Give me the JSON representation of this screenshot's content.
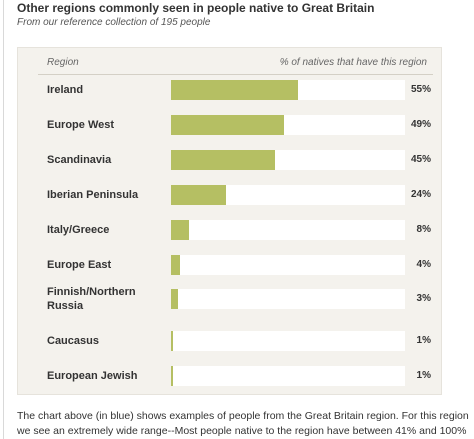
{
  "title": "Other regions commonly seen in people native to Great Britain",
  "subtitle": "From our reference collection of 195 people",
  "footnote": "The chart above (in blue) shows examples of people from the Great Britain region. For this region we see an extremely wide range--Most people native to the region have between 41% and 100% of their",
  "colors": {
    "bar": "#b5bf63",
    "panel": "#f4f2ed",
    "track": "#ffffff"
  },
  "chart_data": {
    "type": "bar",
    "orientation": "horizontal",
    "column_headers": {
      "category": "Region",
      "value": "% of natives that have this region"
    },
    "categories": [
      "Ireland",
      "Europe West",
      "Scandinavia",
      "Iberian Peninsula",
      "Italy/Greece",
      "Europe East",
      "Finnish/Northern Russia",
      "Caucasus",
      "European Jewish"
    ],
    "values": [
      55,
      49,
      45,
      24,
      8,
      4,
      3,
      1,
      1
    ],
    "value_labels": [
      "55%",
      "49%",
      "45%",
      "24%",
      "8%",
      "4%",
      "3%",
      "1%",
      "1%"
    ],
    "xlim": [
      0,
      100
    ],
    "grid": false,
    "legend": "none"
  }
}
